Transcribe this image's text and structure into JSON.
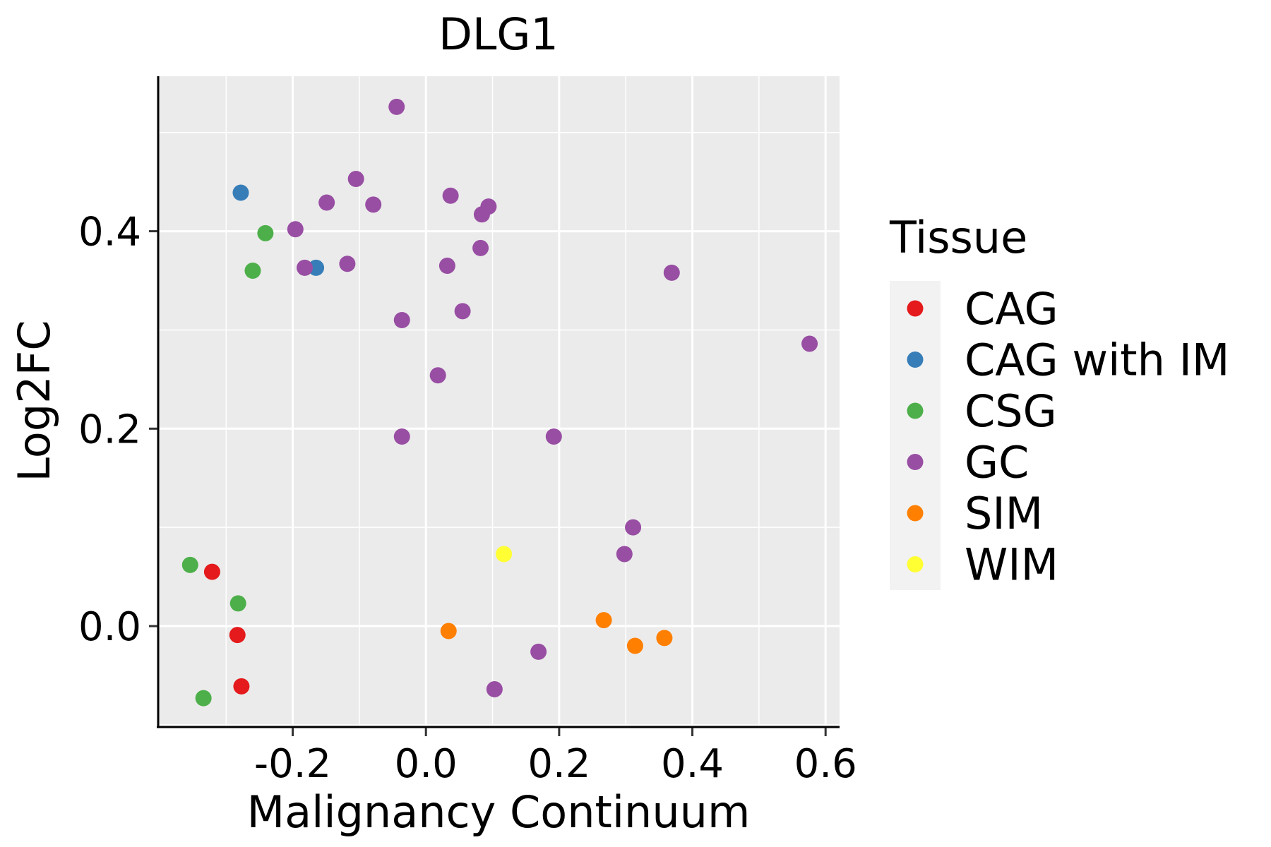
{
  "chart_data": {
    "type": "scatter",
    "title": "DLG1",
    "xlabel": "Malignancy Continuum",
    "ylabel": "Log2FC",
    "xlim": [
      -0.402,
      0.621
    ],
    "ylim": [
      -0.1015,
      0.557
    ],
    "xticks": [
      -0.2,
      0.0,
      0.2,
      0.4,
      0.6
    ],
    "xtick_labels": [
      "-0.2",
      "0.0",
      "0.2",
      "0.4",
      "0.6"
    ],
    "yticks": [
      0.0,
      0.2,
      0.4
    ],
    "ytick_labels": [
      "0.0",
      "0.2",
      "0.4"
    ],
    "x_minor_grid": [
      -0.3,
      -0.1,
      0.1,
      0.3,
      0.5
    ],
    "y_minor_grid": [
      -0.1,
      0.1,
      0.3,
      0.5
    ],
    "grid": true,
    "background": "#EBEBEB",
    "legend": {
      "title": "Tissue",
      "position": "right",
      "entries": [
        {
          "label": "CAG",
          "color": "#E41A1C"
        },
        {
          "label": "CAG with IM",
          "color": "#377EB8"
        },
        {
          "label": "CSG",
          "color": "#4DAF4A"
        },
        {
          "label": "GC",
          "color": "#984EA3"
        },
        {
          "label": "SIM",
          "color": "#FF7F00"
        },
        {
          "label": "WIM",
          "color": "#FFFF33"
        }
      ]
    },
    "series": [
      {
        "name": "CAG",
        "color": "#E41A1C",
        "points": [
          {
            "x": -0.321,
            "y": 0.055
          },
          {
            "x": -0.283,
            "y": -0.009
          },
          {
            "x": -0.277,
            "y": -0.061
          }
        ]
      },
      {
        "name": "CAG with IM",
        "color": "#377EB8",
        "points": [
          {
            "x": -0.278,
            "y": 0.439
          },
          {
            "x": -0.165,
            "y": 0.363
          }
        ]
      },
      {
        "name": "CSG",
        "color": "#4DAF4A",
        "points": [
          {
            "x": -0.241,
            "y": 0.398
          },
          {
            "x": -0.26,
            "y": 0.36
          },
          {
            "x": -0.354,
            "y": 0.062
          },
          {
            "x": -0.282,
            "y": 0.023
          },
          {
            "x": -0.334,
            "y": -0.073
          }
        ]
      },
      {
        "name": "GC",
        "color": "#984EA3",
        "points": [
          {
            "x": -0.044,
            "y": 0.526
          },
          {
            "x": -0.105,
            "y": 0.453
          },
          {
            "x": -0.149,
            "y": 0.429
          },
          {
            "x": -0.079,
            "y": 0.427
          },
          {
            "x": 0.037,
            "y": 0.436
          },
          {
            "x": 0.094,
            "y": 0.425
          },
          {
            "x": 0.084,
            "y": 0.417
          },
          {
            "x": -0.196,
            "y": 0.402
          },
          {
            "x": 0.082,
            "y": 0.383
          },
          {
            "x": -0.182,
            "y": 0.363
          },
          {
            "x": -0.118,
            "y": 0.367
          },
          {
            "x": 0.032,
            "y": 0.365
          },
          {
            "x": 0.369,
            "y": 0.358
          },
          {
            "x": -0.036,
            "y": 0.31
          },
          {
            "x": 0.055,
            "y": 0.319
          },
          {
            "x": 0.018,
            "y": 0.254
          },
          {
            "x": 0.576,
            "y": 0.286
          },
          {
            "x": -0.036,
            "y": 0.192
          },
          {
            "x": 0.192,
            "y": 0.192
          },
          {
            "x": 0.311,
            "y": 0.1
          },
          {
            "x": 0.298,
            "y": 0.073
          },
          {
            "x": 0.169,
            "y": -0.026
          },
          {
            "x": 0.103,
            "y": -0.064
          }
        ]
      },
      {
        "name": "SIM",
        "color": "#FF7F00",
        "points": [
          {
            "x": 0.034,
            "y": -0.005
          },
          {
            "x": 0.267,
            "y": 0.006
          },
          {
            "x": 0.314,
            "y": -0.02
          },
          {
            "x": 0.358,
            "y": -0.012
          }
        ]
      },
      {
        "name": "WIM",
        "color": "#FFFF33",
        "points": [
          {
            "x": 0.117,
            "y": 0.073
          }
        ]
      }
    ]
  }
}
